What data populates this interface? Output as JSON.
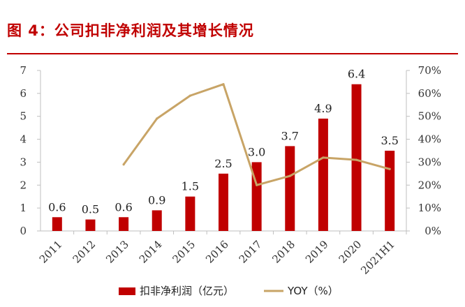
{
  "header": {
    "figure_title": "图 4：公司扣非净利润及其增长情况"
  },
  "colors": {
    "title": "#c00000",
    "bar": "#c00000",
    "line": "#c8a466",
    "axis": "#bfbfbf"
  },
  "chart_data": {
    "type": "bar",
    "title": "图 4：公司扣非净利润及其增长情况",
    "categories": [
      "2011",
      "2012",
      "2013",
      "2014",
      "2015",
      "2016",
      "2017",
      "2018",
      "2019",
      "2020",
      "2021H1"
    ],
    "series": [
      {
        "name": "扣非净利润（亿元）",
        "type": "bar",
        "axis": "left",
        "values": [
          0.6,
          0.5,
          0.6,
          0.9,
          1.5,
          2.5,
          3.0,
          3.7,
          4.9,
          6.4,
          3.5
        ],
        "labels": [
          "0.6",
          "0.5",
          "0.6",
          "0.9",
          "1.5",
          "2.5",
          "3.0",
          "3.7",
          "4.9",
          "6.4",
          "3.5"
        ]
      },
      {
        "name": "YOY（%）",
        "type": "line",
        "axis": "right",
        "values": [
          null,
          null,
          29,
          49,
          59,
          64,
          20,
          24,
          32,
          31,
          27
        ]
      }
    ],
    "y_left": {
      "min": 0,
      "max": 7,
      "ticks": [
        "0",
        "1",
        "2",
        "3",
        "4",
        "5",
        "6",
        "7"
      ]
    },
    "y_right": {
      "min": 0,
      "max": 70,
      "ticks": [
        "0%",
        "10%",
        "20%",
        "30%",
        "40%",
        "50%",
        "60%",
        "70%"
      ]
    },
    "grid": false,
    "legend_position": "bottom"
  }
}
